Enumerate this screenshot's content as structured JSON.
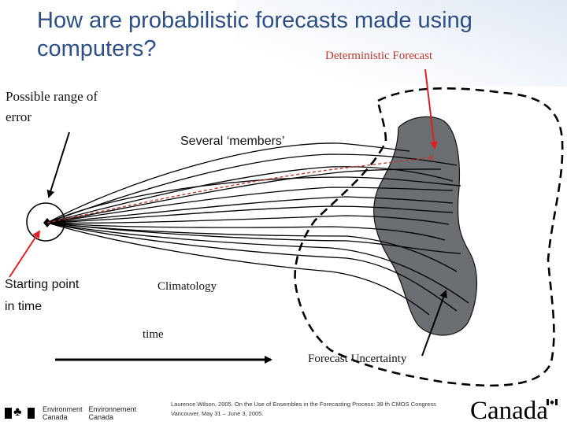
{
  "slide": {
    "title_line1": "How are probabilistic forecasts made using",
    "title_line2": "computers?"
  },
  "labels": {
    "deterministic_forecast": "Deterministic Forecast",
    "possible_range_line1": "Possible range of",
    "possible_range_line2": "error",
    "several_members": "Several ‘members’",
    "starting_point_line1": "Starting point",
    "starting_point_line2": "in time",
    "climatology": "Climatology",
    "time": "time",
    "forecast_uncertainty": "Forecast Uncertainty",
    "x_marker": "x"
  },
  "footer": {
    "citation_line1": "Laurence Wilson, 2005. On the Use of Ensembles in the Forecasting Process: 39 th CMOS Congress",
    "citation_line2": "Vancouver, May 31 – June 3, 2005.",
    "dept_en_line1": "Environment",
    "dept_en_line2": "Canada",
    "dept_fr_line1": "Environnement",
    "dept_fr_line2": "Canada",
    "wordmark": "Canada"
  },
  "colors": {
    "title": "#2c4f8a",
    "deterministic": "#c0392b",
    "red_arrow": "#e02020",
    "uncertainty_fill": "#6b6e73",
    "lines": "#000000"
  }
}
